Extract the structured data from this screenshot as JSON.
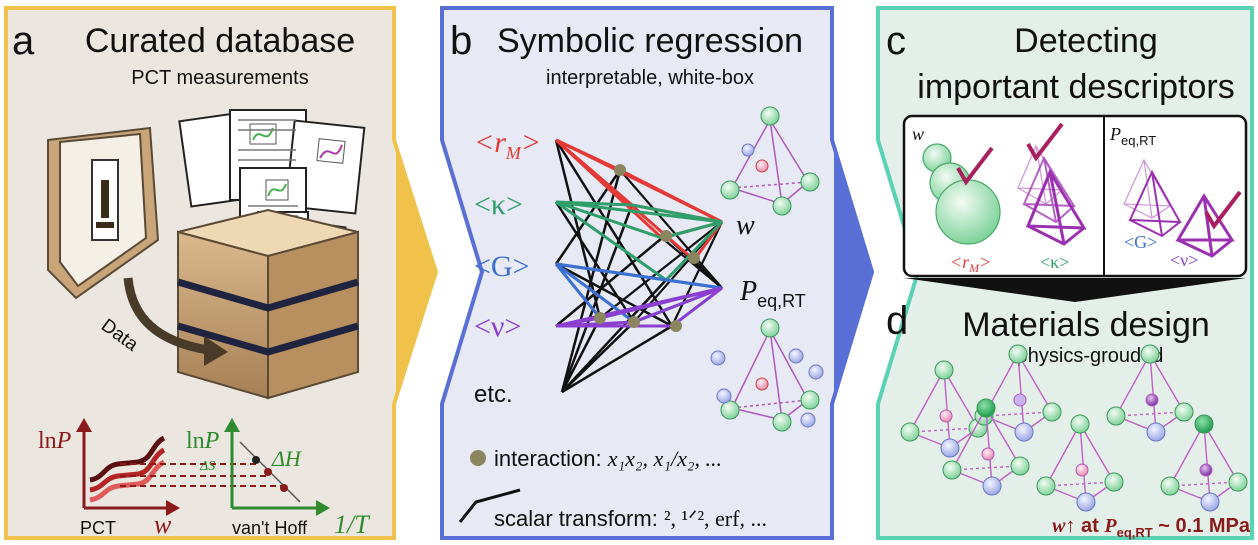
{
  "panel_a": {
    "letter": "a",
    "title": "Curated database",
    "subtitle": "PCT measurements",
    "data_arrow_label": "Data",
    "pct_plot": {
      "ylabel_prefix": "ln",
      "ylabel_var": "P",
      "xlabel": "w",
      "caption": "PCT"
    },
    "vanthoff_plot": {
      "ylabel_prefix": "ln",
      "ylabel_var": "P",
      "slope_dS": "ΔS",
      "slope_dH": "ΔH",
      "xlabel": "1/T",
      "caption": "van't Hoff"
    }
  },
  "panel_b": {
    "letter": "b",
    "title": "Symbolic regression",
    "subtitle": "interpretable, white-box",
    "inputs": [
      {
        "sym": "<r",
        "sub": "M",
        "close": ">",
        "color": "#e53935"
      },
      {
        "sym": "<κ>",
        "sub": "",
        "close": "",
        "color": "#2e9e6a"
      },
      {
        "sym": "<G>",
        "sub": "",
        "close": "",
        "color": "#3b6fd0"
      },
      {
        "sym": "<ν>",
        "sub": "",
        "close": "",
        "color": "#8a3fd1"
      },
      {
        "sym": "etc.",
        "sub": "",
        "close": "",
        "color": "#111111"
      }
    ],
    "outputs": [
      {
        "sym": "w",
        "sub": ""
      },
      {
        "sym": "P",
        "sub": "eq,RT"
      }
    ],
    "legend_interaction_label": "interaction: ",
    "legend_interaction_math": "x₁x₂, x₁/x₂, ...",
    "legend_transform_label": "scalar transform: ",
    "legend_transform_math": "², ¹ᐟ², erf, ...",
    "colors": {
      "node": "#8b8560",
      "bg": "#e7e9f5",
      "border": "#5a6fd6"
    }
  },
  "panel_c": {
    "letter": "c",
    "title_line1": "Detecting",
    "title_line2": "important descriptors",
    "box_left_label": "w",
    "box_right_label_var": "P",
    "box_right_label_sub": "eq,RT",
    "desc_rM": "<r",
    "desc_rM_sub": "M",
    "desc_rM_close": ">",
    "desc_kappa": "<κ>",
    "desc_G": "<G>",
    "desc_nu": "<ν>"
  },
  "panel_d": {
    "letter": "d",
    "title": "Materials design",
    "subtitle": "physics-grouded",
    "goal_var": "w",
    "goal_arrow": "↑",
    "goal_at": " at ",
    "goal_P": "P",
    "goal_P_sub": "eq,RT",
    "goal_value": " ~ 0.1 MPa"
  },
  "colors": {
    "panel_a_bg": "#ebe7e0",
    "panel_a_border": "#f0c14b",
    "panel_b_bg": "#e7e9f5",
    "panel_b_border": "#5a6fd6",
    "panel_c_bg": "#e5efe9",
    "panel_c_border": "#59d3b4",
    "dark_red": "#8b1a1a",
    "green": "#2e8b2e"
  }
}
